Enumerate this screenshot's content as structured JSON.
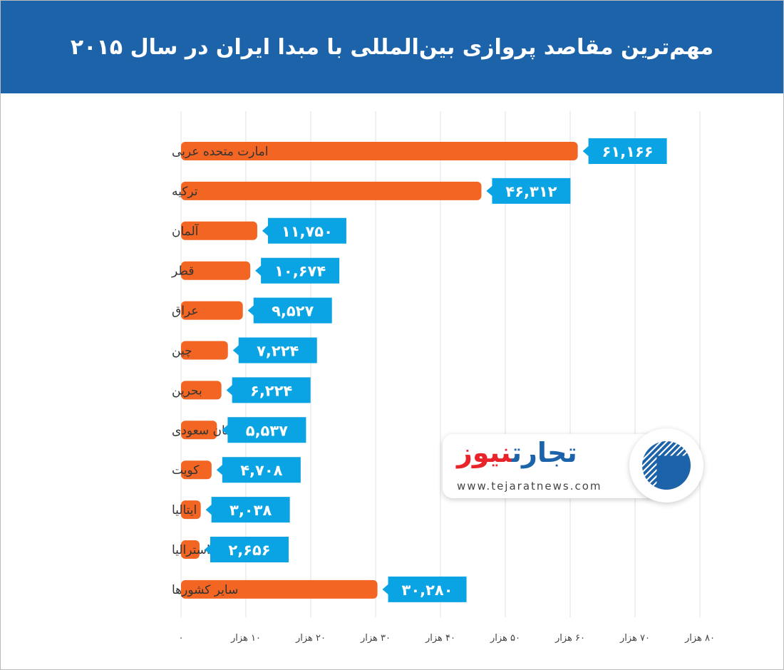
{
  "header": {
    "title": "مهم‌ترین مقاصد پروازی بین‌المللی با مبدا ایران در سال ۲۰۱۵"
  },
  "logo": {
    "name_part1": "تجارت",
    "name_part2": "نیوز",
    "url": "www.tejaratnews.com"
  },
  "colors": {
    "bar": "#f26522",
    "label": "#0aa3e3",
    "header": "#1c63a9",
    "grid": "#e0e0e0"
  },
  "chart_data": {
    "type": "bar",
    "orientation": "horizontal",
    "title": "مهم‌ترین مقاصد پروازی بین‌المللی با مبدا ایران در سال ۲۰۱۵",
    "categories": [
      "امارت متحده عربی",
      "ترکیه",
      "آلمان",
      "قطر",
      "عراق",
      "چین",
      "بحرین",
      "عربستان سعودی",
      "کویت",
      "ایتالیا",
      "استرالیا",
      "سایر کشورها"
    ],
    "values": [
      61166,
      46312,
      11750,
      10674,
      9527,
      7224,
      6224,
      5537,
      4708,
      3038,
      2656,
      30280
    ],
    "value_labels": [
      "۶۱,۱۶۶",
      "۴۶,۳۱۲",
      "۱۱,۷۵۰",
      "۱۰,۶۷۴",
      "۹,۵۲۷",
      "۷,۲۲۴",
      "۶,۲۲۴",
      "۵,۵۳۷",
      "۴,۷۰۸",
      "۳,۰۳۸",
      "۲,۶۵۶",
      "۳۰,۲۸۰"
    ],
    "xlim": [
      0,
      80000
    ],
    "xticks": [
      0,
      10000,
      20000,
      30000,
      40000,
      50000,
      60000,
      70000,
      80000
    ],
    "xtick_labels": [
      "۰",
      "۱۰ هزار",
      "۲۰ هزار",
      "۳۰ هزار",
      "۴۰ هزار",
      "۵۰ هزار",
      "۶۰ هزار",
      "۷۰ هزار",
      "۸۰ هزار"
    ],
    "grid": true
  }
}
